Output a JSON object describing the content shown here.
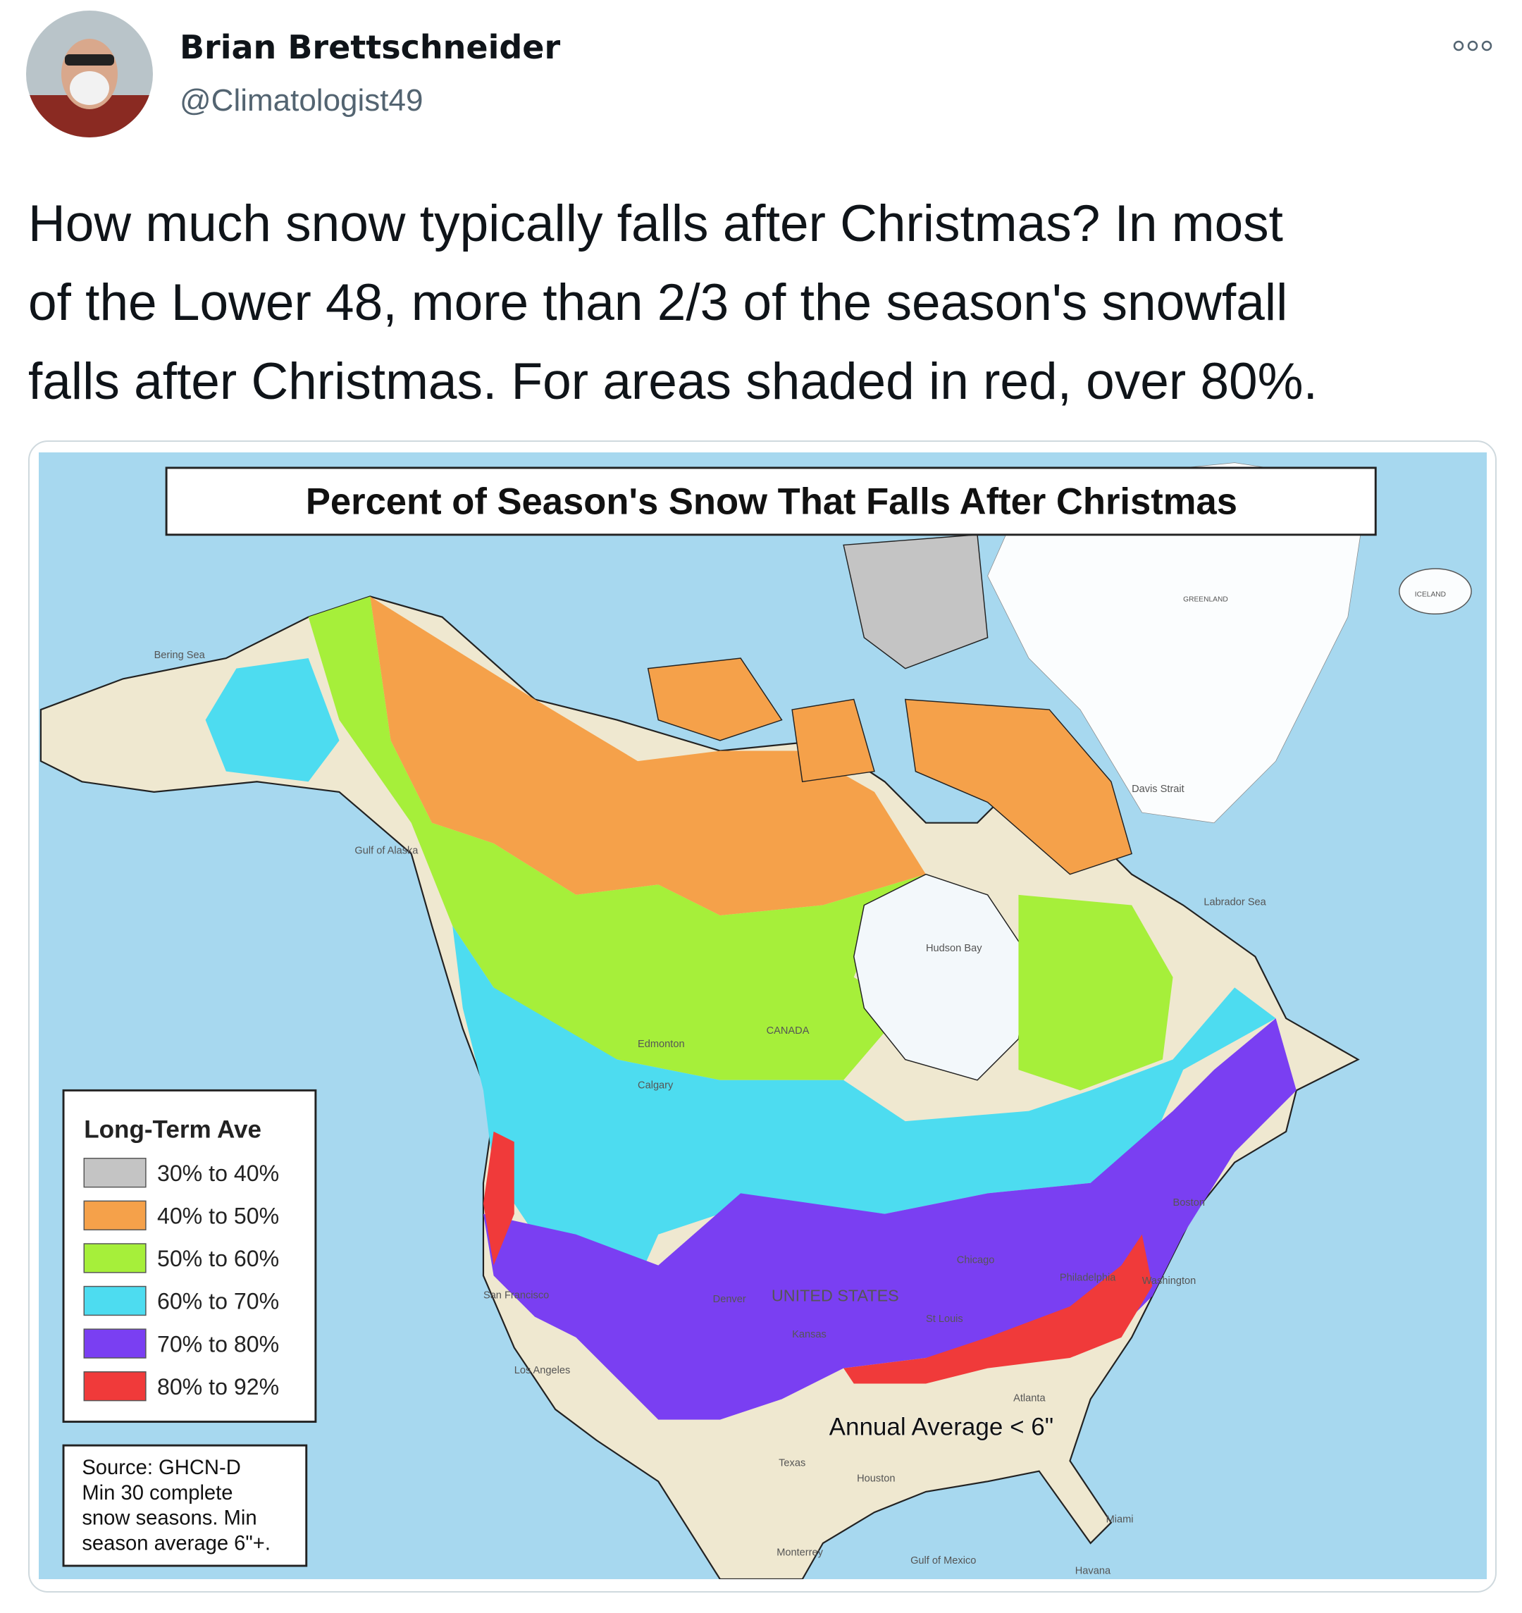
{
  "tweet": {
    "author": {
      "name": "Brian Brettschneider",
      "handle": "@Climatologist49"
    },
    "text_lines": [
      "How much snow typically falls after Christmas? In most",
      "of the Lower 48, more than 2/3 of the season's snowfall",
      "falls after Christmas. For areas shaded in red, over 80%."
    ]
  },
  "map": {
    "title": "Percent of Season's Snow That Falls After Christmas",
    "legend": {
      "title": "Long-Term Ave",
      "items": [
        {
          "label": "30% to 40%",
          "color": "#c4c4c4"
        },
        {
          "label": "40% to 50%",
          "color": "#f5a14a"
        },
        {
          "label": "50% to 60%",
          "color": "#a6ef3a"
        },
        {
          "label": "60% to 70%",
          "color": "#4ddcf0"
        },
        {
          "label": "70% to 80%",
          "color": "#7a3ff2"
        },
        {
          "label": "80% to 92%",
          "color": "#f03a3a"
        }
      ]
    },
    "source": [
      "Source: GHCN-D",
      "Min 30 complete",
      "snow seasons. Min",
      "season average 6\"+."
    ],
    "annotation": "Annual Average < 6\"",
    "labels": [
      "CANADA",
      "UNITED STATES",
      "Hudson Bay",
      "Texas",
      "Houston",
      "Atlanta",
      "Boston",
      "Philadelphia",
      "Chicago",
      "St Louis",
      "Denver",
      "San Francisco",
      "Los Angeles",
      "Monterrey",
      "Miami",
      "Havana",
      "Gulf of Mexico",
      "Washington",
      "Calgary",
      "Edmonton",
      "Kansas",
      "Labrador Sea",
      "Gulf of Alaska",
      "Bering Sea",
      "Davis Strait",
      "ICELAND",
      "GREENLAND"
    ]
  }
}
